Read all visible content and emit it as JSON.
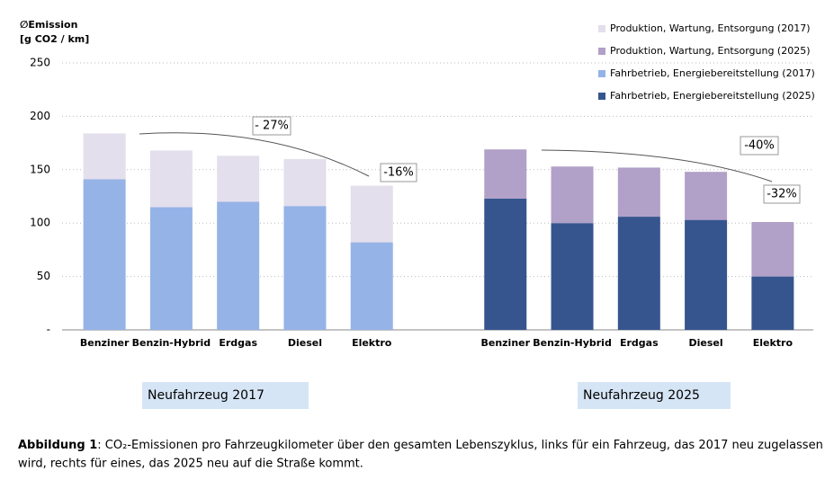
{
  "chart_data": {
    "type": "stacked_bar",
    "y_label_lines": [
      "∅Emission",
      "[g CO2 / km]"
    ],
    "categories": [
      "Benziner",
      "Benzin-Hybrid",
      "Erdgas",
      "Diesel",
      "Elektro",
      null,
      "Benziner",
      "Benzin-Hybrid",
      "Erdgas",
      "Diesel",
      "Elektro"
    ],
    "series": [
      {
        "name": "Produktion, Wartung, Entsorgung (2017)",
        "color": "#e4dfec",
        "values": [
          43,
          53,
          43,
          44,
          53,
          null,
          null,
          null,
          null,
          null,
          null
        ]
      },
      {
        "name": "Produktion, Wartung, Entsorgung (2025)",
        "color": "#b1a0c7",
        "values": [
          null,
          null,
          null,
          null,
          null,
          null,
          46,
          53,
          46,
          45,
          51
        ]
      },
      {
        "name": "Fahrbetrieb, Energiebereitstellung (2017)",
        "color": "#95b3e6",
        "values": [
          141,
          115,
          120,
          116,
          82,
          null,
          null,
          null,
          null,
          null,
          null
        ]
      },
      {
        "name": "Fahrbetrieb, Energiebereitstellung (2025)",
        "color": "#36558f",
        "values": [
          null,
          null,
          null,
          null,
          null,
          null,
          123,
          100,
          106,
          103,
          50
        ]
      }
    ],
    "ylim": [
      0,
      250
    ],
    "yticks": [
      {
        "value": 0,
        "label": "-"
      },
      50,
      100,
      150,
      200,
      250
    ],
    "grid": true,
    "legend": "top-right",
    "annotations": [
      "- 27%",
      "-16%",
      "-40%",
      "-32%"
    ],
    "group_labels": [
      "Neufahrzeug 2017",
      "Neufahrzeug 2025"
    ]
  },
  "caption": {
    "label": "Abbildung 1",
    "lines": [
      ": CO₂-Emissionen pro Fahrzeugkilometer über den gesamten Lebenszyklus, links für ein Fahrzeug, das 2017 neu zugelassen",
      "wird, rechts für eines, das 2025 neu auf die Straße kommt."
    ]
  }
}
